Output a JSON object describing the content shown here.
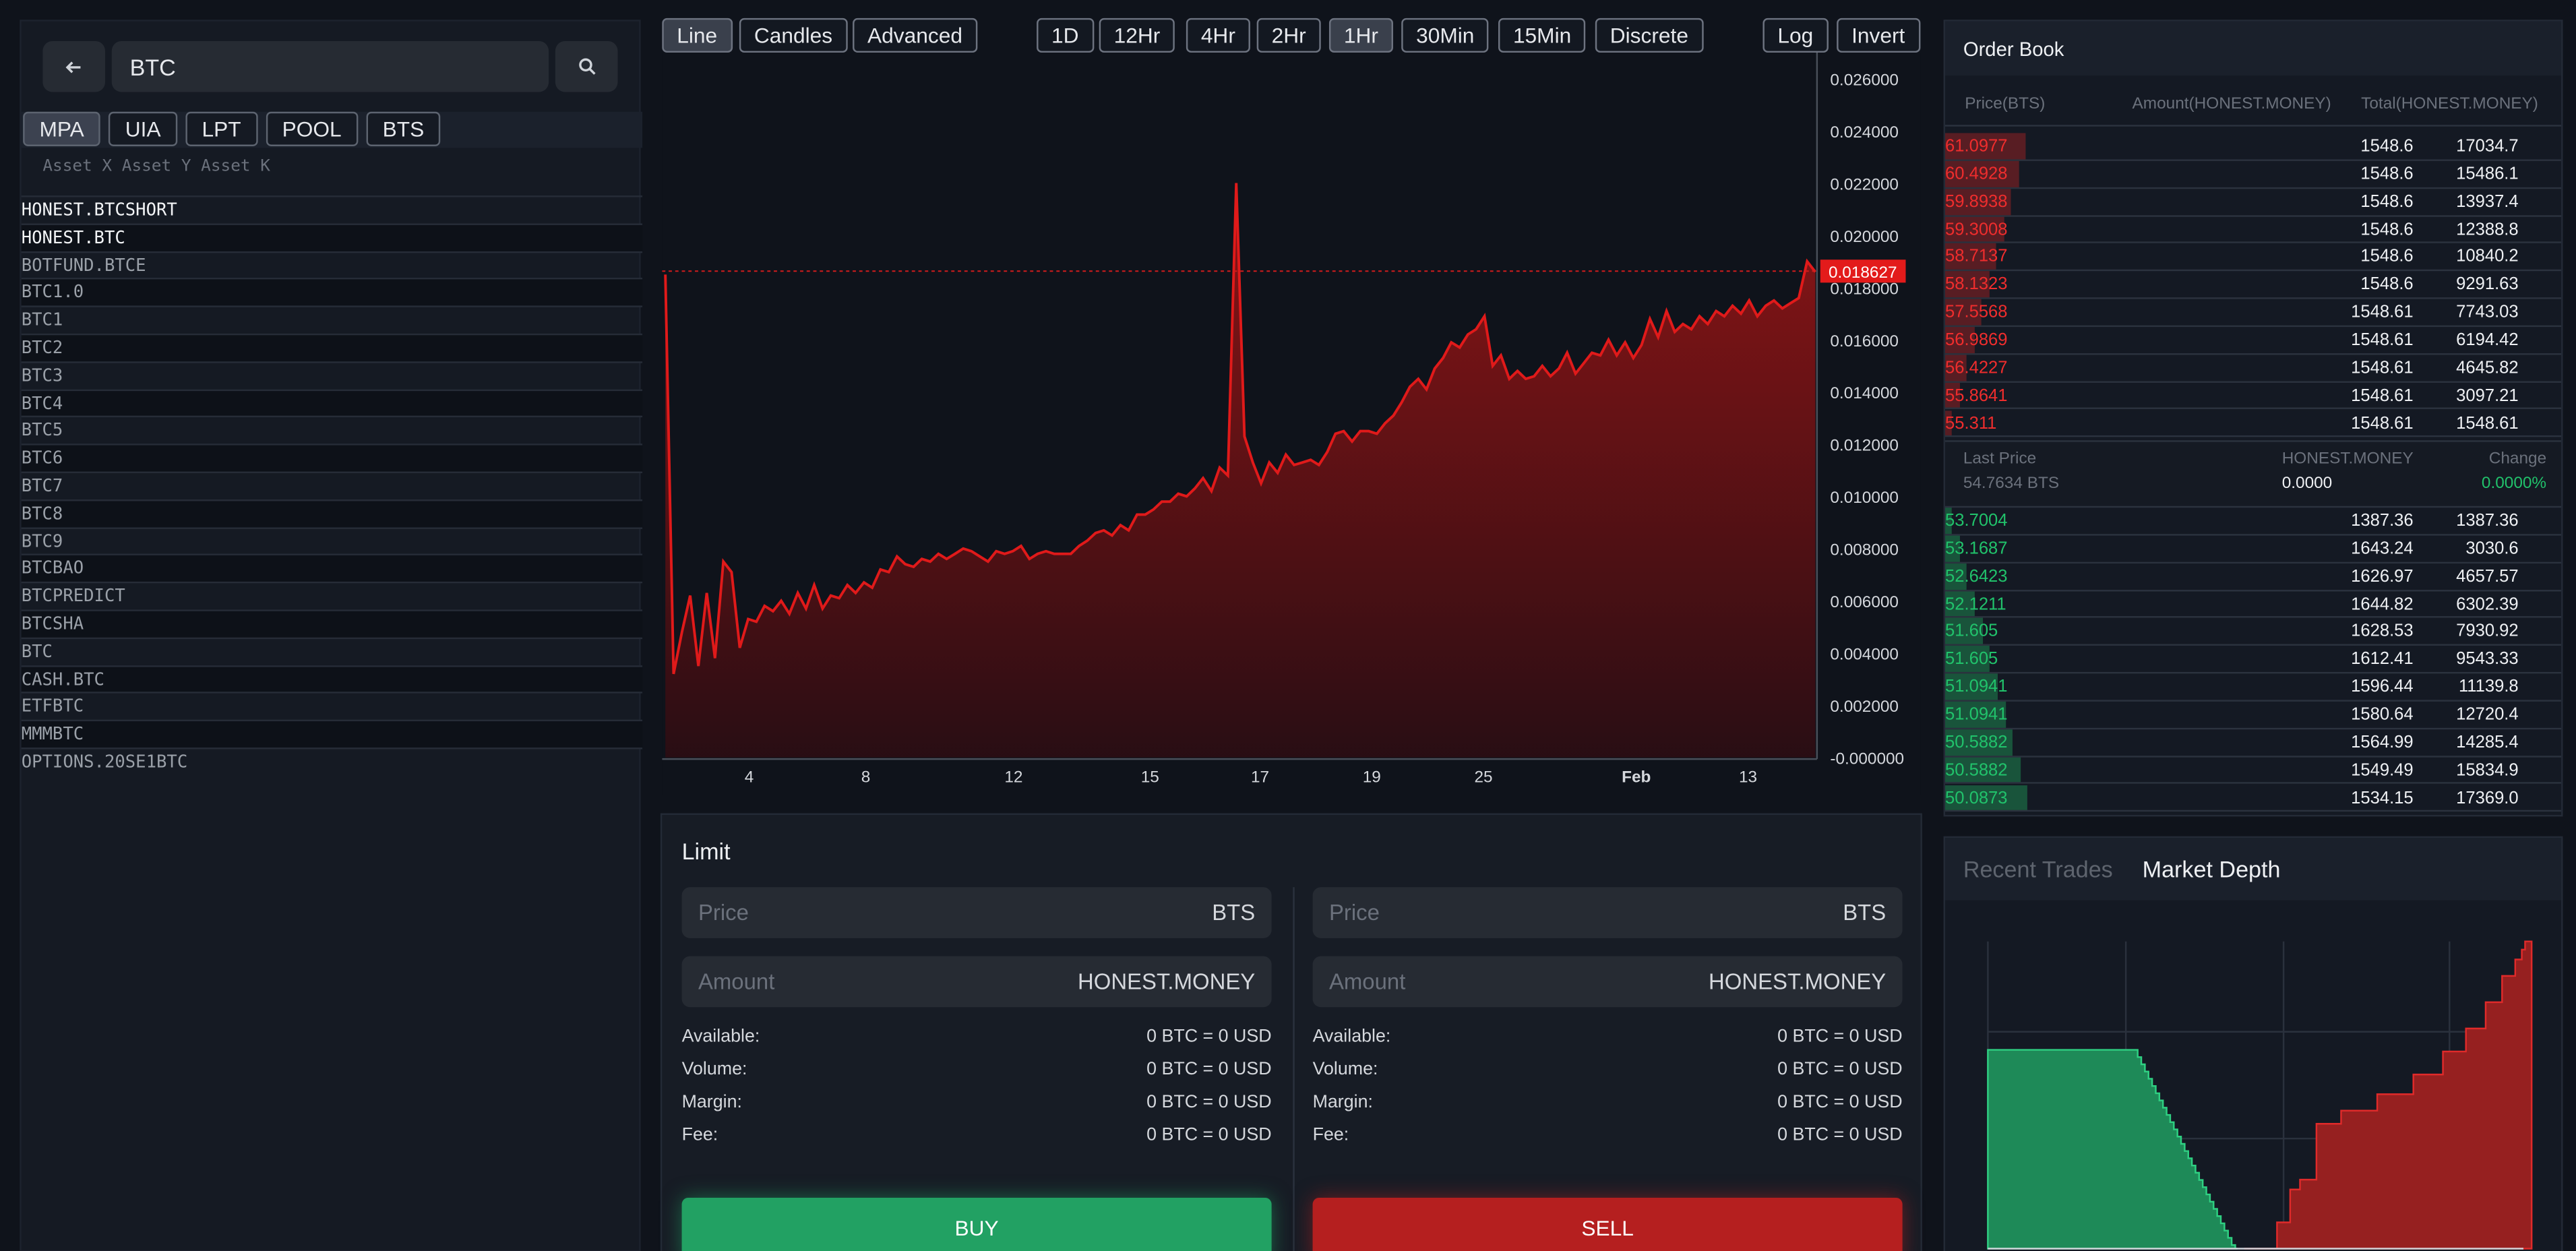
{
  "search": {
    "value": "BTC",
    "back_icon": "arrow-left-icon",
    "search_icon": "magnifier-icon"
  },
  "asset_tabs": [
    "MPA",
    "UIA",
    "LPT",
    "POOL",
    "BTS"
  ],
  "asset_columns": "Asset X Asset Y Asset K",
  "assets": [
    "HONEST.BTCSHORT",
    "HONEST.BTC",
    "BOTFUND.BTCE",
    "BTC1.0",
    "BTC1",
    "BTC2",
    "BTC3",
    "BTC4",
    "BTC5",
    "BTC6",
    "BTC7",
    "BTC8",
    "BTC9",
    "BTCBAO",
    "BTCPREDICT",
    "BTCSHA",
    "BTC",
    "CASH.BTC",
    "ETFBTC",
    "MMMBTC",
    "OPTIONS.20SE1BTC"
  ],
  "chart_toolbar": {
    "types": [
      "Line",
      "Candles",
      "Advanced"
    ],
    "intervals": [
      "1D",
      "12Hr",
      "4Hr",
      "2Hr",
      "1Hr",
      "30Min",
      "15Min",
      "Discrete"
    ],
    "scale": [
      "Log",
      "Invert"
    ]
  },
  "chart_data": {
    "type": "area",
    "color": "#e01a1a",
    "x_ticks": [
      "4",
      "8",
      "12",
      "15",
      "17",
      "19",
      "25",
      "Feb",
      "13"
    ],
    "y_ticks": [
      "0.026000",
      "0.024000",
      "0.022000",
      "0.020000",
      "0.018000",
      "0.016000",
      "0.014000",
      "0.012000",
      "0.010000",
      "0.008000",
      "0.006000",
      "0.004000",
      "0.002000",
      "-0.000000"
    ],
    "ylim": [
      0,
      0.027
    ],
    "current_price_label": "0.018627",
    "current_price": 0.018627,
    "series": [
      {
        "values": [
          0.0185,
          0.0032,
          0.0048,
          0.0062,
          0.0035,
          0.0063,
          0.0038,
          0.0075,
          0.0071,
          0.0042,
          0.0053,
          0.0052,
          0.0058,
          0.0056,
          0.006,
          0.0055,
          0.0063,
          0.0057,
          0.0066,
          0.0057,
          0.0062,
          0.0061,
          0.0066,
          0.0063,
          0.0067,
          0.0065,
          0.0072,
          0.0071,
          0.0077,
          0.0074,
          0.0073,
          0.0076,
          0.0075,
          0.0078,
          0.0076,
          0.0078,
          0.008,
          0.0079,
          0.0077,
          0.0075,
          0.0079,
          0.0078,
          0.0079,
          0.0081,
          0.0076,
          0.0078,
          0.0079,
          0.0078,
          0.0078,
          0.0078,
          0.0081,
          0.0083,
          0.0086,
          0.0087,
          0.0085,
          0.0089,
          0.0087,
          0.0093,
          0.0093,
          0.0095,
          0.0098,
          0.0098,
          0.0101,
          0.01,
          0.0103,
          0.0107,
          0.0102,
          0.0111,
          0.0108,
          0.022,
          0.0123,
          0.0113,
          0.0105,
          0.0113,
          0.0109,
          0.0116,
          0.0112,
          0.0113,
          0.0114,
          0.0112,
          0.0117,
          0.0124,
          0.0125,
          0.0121,
          0.0125,
          0.0125,
          0.0124,
          0.0128,
          0.0131,
          0.0136,
          0.0142,
          0.0145,
          0.0141,
          0.0149,
          0.0153,
          0.0159,
          0.0157,
          0.0162,
          0.0164,
          0.0169,
          0.015,
          0.0154,
          0.0145,
          0.0148,
          0.0145,
          0.0146,
          0.015,
          0.0146,
          0.0149,
          0.0155,
          0.0147,
          0.0151,
          0.0155,
          0.0154,
          0.016,
          0.0154,
          0.0159,
          0.0153,
          0.0158,
          0.0168,
          0.0161,
          0.0171,
          0.0163,
          0.0166,
          0.0164,
          0.0169,
          0.0166,
          0.0171,
          0.0169,
          0.0173,
          0.017,
          0.0175,
          0.0169,
          0.0173,
          0.0175,
          0.0172,
          0.0174,
          0.0176,
          0.019,
          0.0186
        ]
      }
    ]
  },
  "limit": {
    "title": "Limit",
    "price_placeholder": "Price",
    "price_unit": "BTS",
    "amount_placeholder": "Amount",
    "amount_unit": "HONEST.MONEY",
    "rows": [
      {
        "label": "Available:",
        "value": "0 BTC = 0 USD"
      },
      {
        "label": "Volume:",
        "value": "0 BTC = 0 USD"
      },
      {
        "label": "Margin:",
        "value": "0 BTC = 0 USD"
      },
      {
        "label": "Fee:",
        "value": "0 BTC = 0 USD"
      }
    ],
    "buy_label": "BUY",
    "sell_label": "SELL",
    "buy_color": "#22a163",
    "sell_color": "#b51f1f"
  },
  "order_book": {
    "title": "Order Book",
    "headers": [
      "Price(BTS)",
      "Amount(HONEST.MONEY)",
      "Total(HONEST.MONEY)"
    ],
    "asks": [
      {
        "price": "61.0977",
        "amount": "1548.6",
        "total": "17034.7"
      },
      {
        "price": "60.4928",
        "amount": "1548.6",
        "total": "15486.1"
      },
      {
        "price": "59.8938",
        "amount": "1548.6",
        "total": "13937.4"
      },
      {
        "price": "59.3008",
        "amount": "1548.6",
        "total": "12388.8"
      },
      {
        "price": "58.7137",
        "amount": "1548.6",
        "total": "10840.2"
      },
      {
        "price": "58.1323",
        "amount": "1548.6",
        "total": "9291.63"
      },
      {
        "price": "57.5568",
        "amount": "1548.61",
        "total": "7743.03"
      },
      {
        "price": "56.9869",
        "amount": "1548.61",
        "total": "6194.42"
      },
      {
        "price": "56.4227",
        "amount": "1548.61",
        "total": "4645.82"
      },
      {
        "price": "55.8641",
        "amount": "1548.61",
        "total": "3097.21"
      },
      {
        "price": "55.311",
        "amount": "1548.61",
        "total": "1548.61"
      }
    ],
    "last_price_label": "Last Price",
    "last_price_value": "54.7634 BTS",
    "mid_label": "HONEST.MONEY",
    "mid_value": "0.0000",
    "change_label": "Change",
    "change_value": "0.0000%",
    "bids": [
      {
        "price": "53.7004",
        "amount": "1387.36",
        "total": "1387.36"
      },
      {
        "price": "53.1687",
        "amount": "1643.24",
        "total": "3030.6"
      },
      {
        "price": "52.6423",
        "amount": "1626.97",
        "total": "4657.57"
      },
      {
        "price": "52.1211",
        "amount": "1644.82",
        "total": "6302.39"
      },
      {
        "price": "51.605",
        "amount": "1628.53",
        "total": "7930.92"
      },
      {
        "price": "51.605",
        "amount": "1612.41",
        "total": "9543.33"
      },
      {
        "price": "51.0941",
        "amount": "1596.44",
        "total": "11139.8"
      },
      {
        "price": "51.0941",
        "amount": "1580.64",
        "total": "12720.4"
      },
      {
        "price": "50.5882",
        "amount": "1564.99",
        "total": "14285.4"
      },
      {
        "price": "50.5882",
        "amount": "1549.49",
        "total": "15834.9"
      },
      {
        "price": "50.0873",
        "amount": "1534.15",
        "total": "17369.0"
      }
    ],
    "ask_color": "#ef2d2d",
    "bid_color": "#21c26b"
  },
  "bottom_tabs": {
    "recent_trades": "Recent Trades",
    "market_depth": "Market Depth"
  }
}
